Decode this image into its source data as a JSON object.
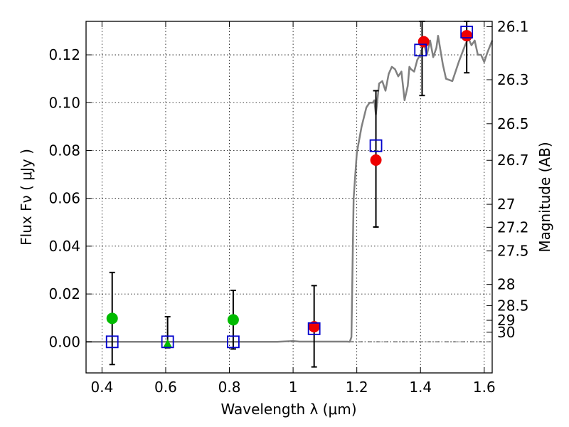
{
  "chart_data": {
    "type": "scatter",
    "xlabel": "Wavelength  λ (μm)",
    "ylabel": "Flux  Fν  ( μJy )",
    "ylabel_right": "Magnitude (AB)",
    "xlim": [
      0.35,
      1.625
    ],
    "ylim": [
      -0.013,
      0.134
    ],
    "grid": true,
    "x_ticks": [
      {
        "value": 0.4,
        "label": "0.4"
      },
      {
        "value": 0.6,
        "label": "0.6"
      },
      {
        "value": 0.8,
        "label": "0.8"
      },
      {
        "value": 1.0,
        "label": "1"
      },
      {
        "value": 1.2,
        "label": "1.2"
      },
      {
        "value": 1.4,
        "label": "1.4"
      },
      {
        "value": 1.6,
        "label": "1.6"
      }
    ],
    "y_ticks": [
      {
        "value": 0.0,
        "label": "0.00"
      },
      {
        "value": 0.02,
        "label": "0.02"
      },
      {
        "value": 0.04,
        "label": "0.04"
      },
      {
        "value": 0.06,
        "label": "0.06"
      },
      {
        "value": 0.08,
        "label": "0.08"
      },
      {
        "value": 0.1,
        "label": "0.10"
      },
      {
        "value": 0.12,
        "label": "0.12"
      }
    ],
    "right_ticks": [
      {
        "flux": 0.1318,
        "label": "26.1"
      },
      {
        "flux": 0.1096,
        "label": "26.3"
      },
      {
        "flux": 0.0912,
        "label": "26.5"
      },
      {
        "flux": 0.0759,
        "label": "26.7"
      },
      {
        "flux": 0.0575,
        "label": "27"
      },
      {
        "flux": 0.0479,
        "label": "27.2"
      },
      {
        "flux": 0.038,
        "label": "27.5"
      },
      {
        "flux": 0.024,
        "label": "28"
      },
      {
        "flux": 0.0151,
        "label": "28.5"
      },
      {
        "flux": 0.009,
        "label": "29"
      },
      {
        "flux": 0.004,
        "label": "30"
      }
    ],
    "model_spectrum": {
      "color": "#808080",
      "x": [
        0.35,
        0.95,
        1.0,
        1.02,
        1.17,
        1.178,
        1.183,
        1.19,
        1.2,
        1.215,
        1.23,
        1.24,
        1.25,
        1.255,
        1.26,
        1.27,
        1.28,
        1.29,
        1.3,
        1.31,
        1.32,
        1.33,
        1.34,
        1.35,
        1.36,
        1.365,
        1.37,
        1.38,
        1.39,
        1.4,
        1.41,
        1.42,
        1.43,
        1.44,
        1.45,
        1.455,
        1.46,
        1.47,
        1.48,
        1.5,
        1.52,
        1.54,
        1.55,
        1.56,
        1.57,
        1.58,
        1.59,
        1.6,
        1.61,
        1.625
      ],
      "y": [
        0.0,
        0.0,
        0.0003,
        0.0001,
        0.0001,
        0.0,
        0.002,
        0.06,
        0.079,
        0.09,
        0.098,
        0.1,
        0.1,
        0.101,
        0.095,
        0.108,
        0.109,
        0.105,
        0.112,
        0.115,
        0.114,
        0.111,
        0.113,
        0.101,
        0.107,
        0.115,
        0.114,
        0.113,
        0.118,
        0.12,
        0.125,
        0.12,
        0.126,
        0.119,
        0.123,
        0.128,
        0.124,
        0.116,
        0.11,
        0.109,
        0.117,
        0.124,
        0.127,
        0.124,
        0.126,
        0.12,
        0.12,
        0.117,
        0.121,
        0.126
      ]
    },
    "series": [
      {
        "marker": "circle",
        "color": "#00bb00",
        "x": [
          0.432,
          0.812
        ],
        "y": [
          0.0098,
          0.0092
        ]
      },
      {
        "marker": "triangle",
        "color": "#00bb00",
        "x": [
          0.606
        ],
        "y": [
          -0.001
        ]
      },
      {
        "marker": "circle",
        "color": "#ee0000",
        "x": [
          1.066,
          1.26,
          1.41,
          1.545
        ],
        "y": [
          0.0063,
          0.076,
          0.1255,
          0.128
        ]
      },
      {
        "marker": "square-open",
        "color": "#0000cc",
        "x": [
          0.432,
          0.606,
          0.812,
          1.066,
          1.26,
          1.4,
          1.545
        ],
        "y": [
          0.0,
          0.0,
          0.0,
          0.0055,
          0.082,
          0.122,
          0.1295
        ]
      }
    ],
    "error_bars": [
      {
        "x": 0.432,
        "low": -0.0095,
        "high": 0.029
      },
      {
        "x": 0.606,
        "low": -0.0025,
        "high": 0.0105
      },
      {
        "x": 0.812,
        "low": -0.003,
        "high": 0.0215
      },
      {
        "x": 1.066,
        "low": -0.0105,
        "high": 0.0235
      },
      {
        "x": 1.26,
        "low": 0.048,
        "high": 0.105
      },
      {
        "x": 1.405,
        "low": 0.103,
        "high": 0.134
      },
      {
        "x": 1.545,
        "low": 0.1125,
        "high": 0.134
      }
    ]
  }
}
